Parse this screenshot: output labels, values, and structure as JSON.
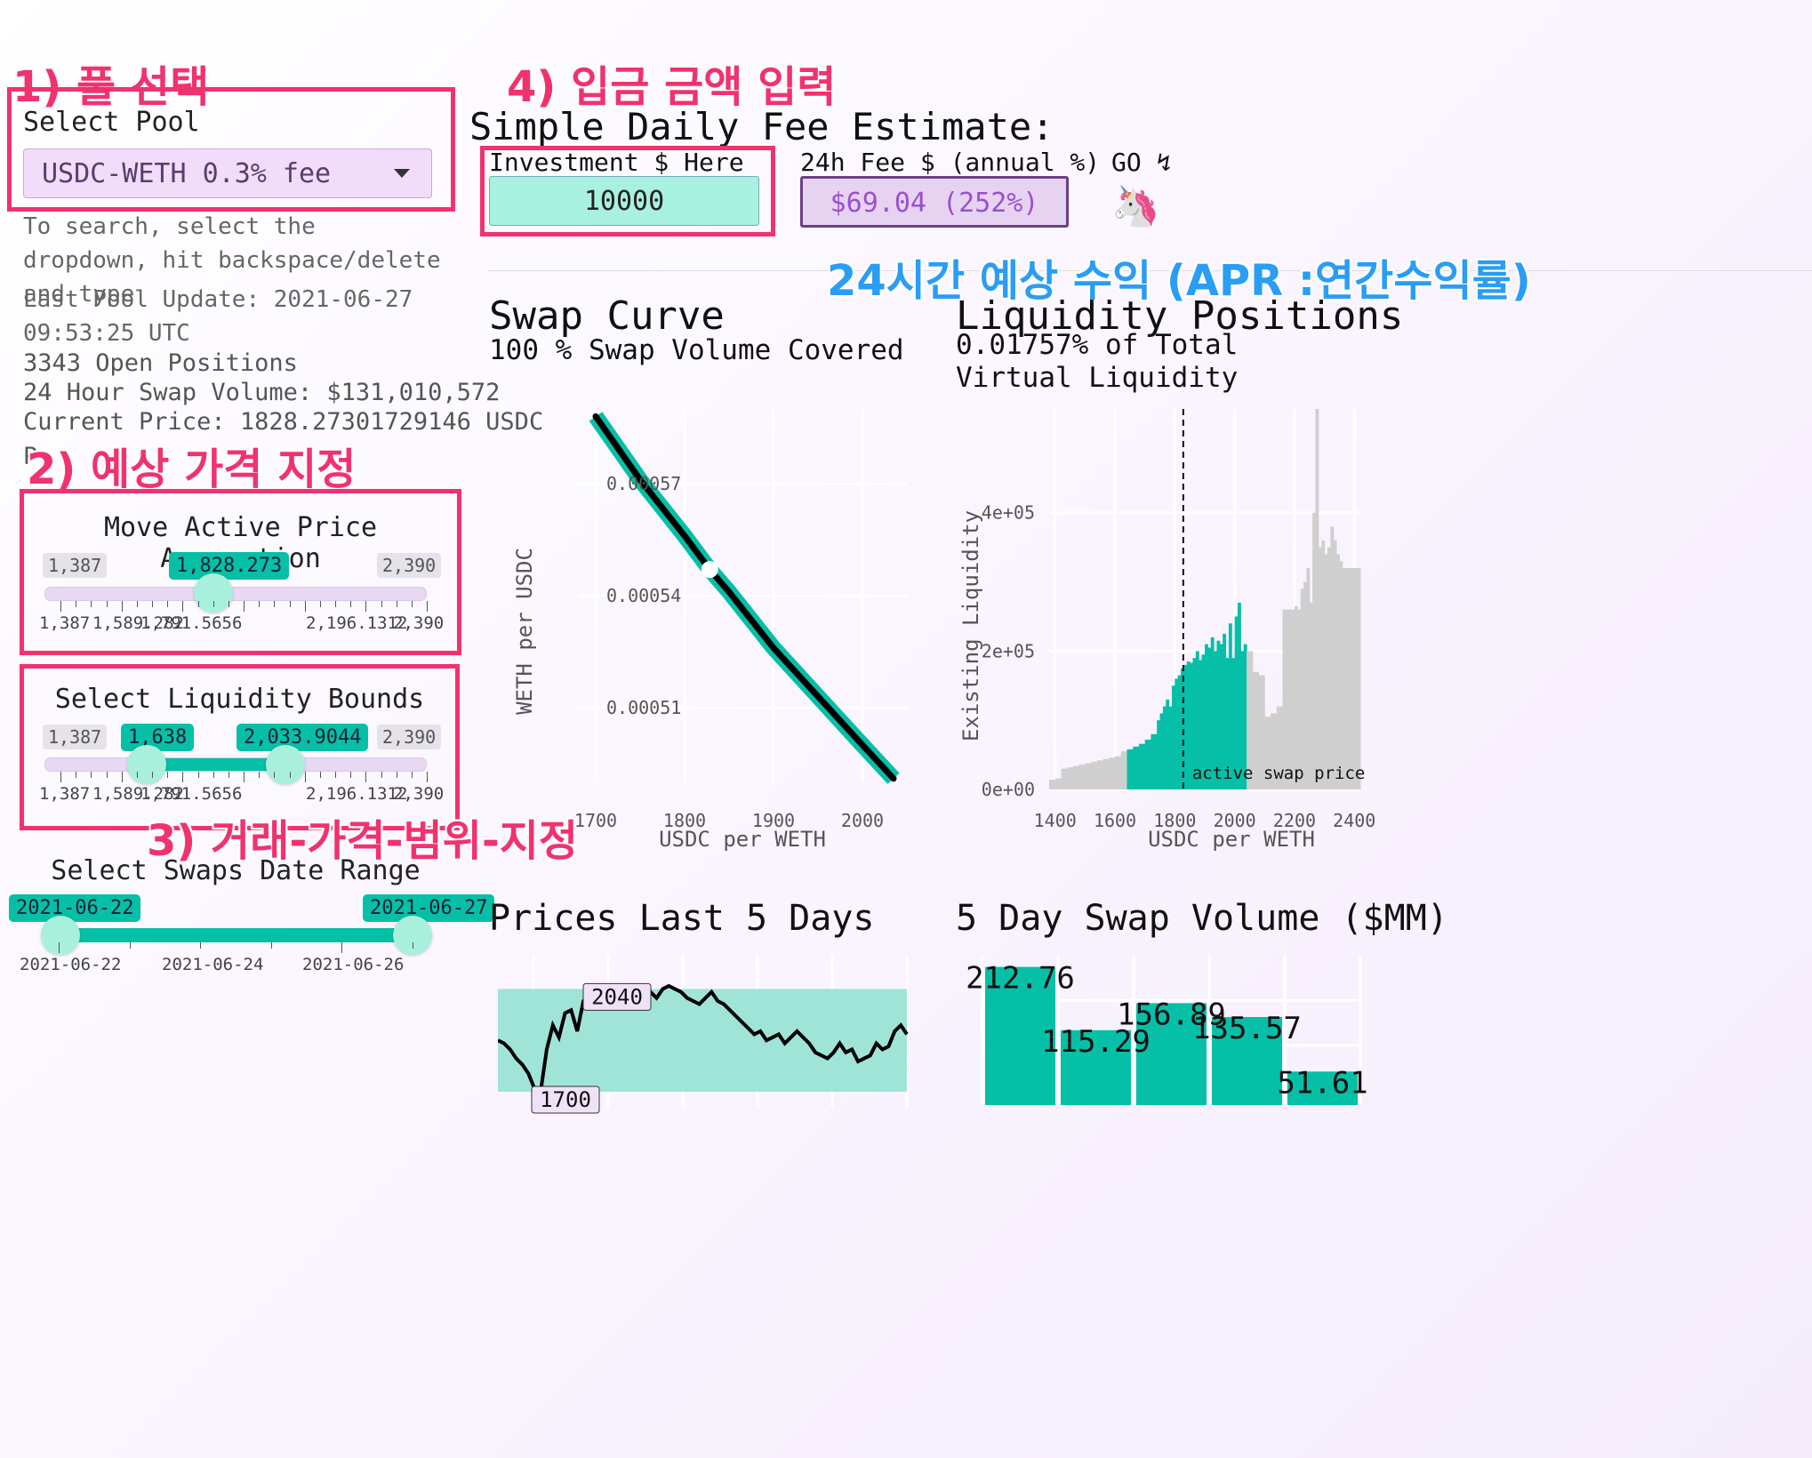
{
  "annotations": {
    "step1": "1) 풀 선택",
    "step2": "2) 예상 가격 지정",
    "step3": "3) 거래-가격-범위-지정",
    "step4": "4) 입금 금액 입력",
    "apr": "24시간 예상 수익 (APR :연간수익률)"
  },
  "sidebar": {
    "select_pool_label": "Select Pool",
    "pool_value": "USDC-WETH 0.3% fee",
    "pool_hint": "To search, select the dropdown, hit backspace/delete and type",
    "last_update": "Last Pool Update: 2021-06-27 09:53:25 UTC",
    "open_positions": "3343 Open Positions",
    "swap_volume": "24 Hour Swap Volume: $131,010,572",
    "current_price": "Current Price: 1828.27301729146 USDC",
    "cut_text": "P"
  },
  "price_slider": {
    "title": "Move Active Price Assumption",
    "min": "1,387",
    "max": "2,390",
    "value": "1,828.273",
    "value_num": 1828.273,
    "ticks": [
      "1,387",
      "1,589.282",
      "1,791.5656",
      "2,196.1312",
      "2,390"
    ]
  },
  "bounds_slider": {
    "title": "Select Liquidity Bounds",
    "min": "1,387",
    "max": "2,390",
    "low": "1,638",
    "high": "2,033.9044",
    "low_num": 1638,
    "high_num": 2033.9044,
    "ticks": [
      "1,387",
      "1,589.282",
      "1,791.5656",
      "2,196.1312",
      "2,390"
    ]
  },
  "date_slider": {
    "title": "Select Swaps Date Range",
    "start": "2021-06-22",
    "end": "2021-06-27",
    "ticks": [
      "2021-06-22",
      "2021-06-24",
      "2021-06-26"
    ]
  },
  "header": {
    "title": "Simple Daily Fee Estimate:",
    "investment_label": "Investment $ Here",
    "investment_value": "10000",
    "fee_label": "24h Fee $ (annual %)",
    "fee_value": "$69.04 (252%)",
    "go_label": "GO ↯",
    "unicorn": "🦄"
  },
  "swap_curve": {
    "title": "Swap Curve",
    "subtitle": "100 % Swap Volume Covered"
  },
  "liquidity": {
    "title": "Liquidity Positions",
    "subtitle": "0.01757% of Total Virtual Liquidity",
    "annotation": "active swap price"
  },
  "prices": {
    "title": "Prices Last 5 Days",
    "high_label": "2040",
    "low_label": "1700"
  },
  "volume": {
    "title": "5 Day Swap Volume ($MM)"
  },
  "colors": {
    "teal": "#06bfa7",
    "pink": "#f0326f",
    "blue": "#2a9df4",
    "purple": "#9b4fd1"
  },
  "chart_data": [
    {
      "type": "line",
      "title": "Swap Curve",
      "xlabel": "USDC per WETH",
      "ylabel": "WETH per USDC",
      "xlim": [
        1680,
        2050
      ],
      "ylim": [
        0.00049,
        0.00059
      ],
      "xticks": [
        "1700",
        "1800",
        "1900",
        "2000"
      ],
      "yticks": [
        "0.00051",
        "0.00054",
        "0.00057"
      ],
      "series": [
        {
          "x": [
            1700,
            1750,
            1800,
            1828.27,
            1850,
            1900,
            1950,
            2000,
            2035
          ],
          "y": [
            0.000588,
            0.000571,
            0.000556,
            0.000547,
            0.000541,
            0.000526,
            0.000513,
            0.0005,
            0.000491
          ]
        }
      ],
      "marker": {
        "x": 1828.27,
        "y": 0.000547
      }
    },
    {
      "type": "bar",
      "title": "Liquidity Positions",
      "xlabel": "USDC per WETH",
      "ylabel": "Existing Liquidity",
      "xlim": [
        1380,
        2420
      ],
      "ylim": [
        0,
        550000
      ],
      "xticks": [
        "1400",
        "1600",
        "1800",
        "2000",
        "2200",
        "2400"
      ],
      "yticks": [
        "0e+00",
        "2e+05",
        "4e+05"
      ],
      "active_price": 1828.27,
      "bounds": [
        1638,
        2033.9
      ],
      "x": [
        1380,
        1400,
        1420,
        1440,
        1460,
        1480,
        1500,
        1520,
        1540,
        1560,
        1580,
        1600,
        1620,
        1640,
        1660,
        1680,
        1700,
        1720,
        1740,
        1750,
        1760,
        1770,
        1780,
        1790,
        1800,
        1810,
        1820,
        1830,
        1840,
        1850,
        1860,
        1870,
        1880,
        1890,
        1900,
        1910,
        1920,
        1930,
        1940,
        1950,
        1960,
        1970,
        1980,
        1990,
        2000,
        2010,
        2020,
        2030,
        2040,
        2060,
        2080,
        2100,
        2120,
        2140,
        2160,
        2180,
        2200,
        2210,
        2220,
        2230,
        2240,
        2250,
        2260,
        2270,
        2280,
        2290,
        2300,
        2310,
        2320,
        2330,
        2340,
        2350,
        2360,
        2380,
        2400
      ],
      "values": [
        14000,
        16000,
        30000,
        32000,
        34000,
        36000,
        38000,
        40000,
        42000,
        44000,
        46000,
        48000,
        55000,
        58000,
        62000,
        66000,
        72000,
        80000,
        100000,
        110000,
        120000,
        130000,
        120000,
        150000,
        160000,
        165000,
        175000,
        180000,
        185000,
        183000,
        190000,
        200000,
        187000,
        195000,
        210000,
        205000,
        220000,
        200000,
        215000,
        210000,
        225000,
        190000,
        240000,
        190000,
        250000,
        270000,
        200000,
        210000,
        200000,
        170000,
        165000,
        105000,
        110000,
        120000,
        260000,
        260000,
        265000,
        260000,
        290000,
        300000,
        320000,
        270000,
        400000,
        550000,
        350000,
        360000,
        340000,
        350000,
        380000,
        360000,
        340000,
        330000,
        320000,
        320000,
        320000
      ]
    },
    {
      "type": "line",
      "title": "Prices Last 5 Days",
      "band": [
        1700,
        2040
      ],
      "series": [
        {
          "values": [
            1870,
            1860,
            1840,
            1810,
            1790,
            1760,
            1710,
            1700,
            1840,
            1920,
            1880,
            1960,
            1970,
            1900,
            2000,
            2010,
            1990,
            2030,
            2040,
            2030,
            2010,
            1990,
            1980,
            2000,
            2020,
            2030,
            2010,
            2040,
            2050,
            2040,
            2030,
            2010,
            2000,
            1990,
            2010,
            2030,
            2000,
            1990,
            1970,
            1950,
            1930,
            1910,
            1890,
            1900,
            1870,
            1880,
            1890,
            1860,
            1880,
            1900,
            1880,
            1860,
            1830,
            1820,
            1810,
            1830,
            1860,
            1830,
            1840,
            1800,
            1810,
            1820,
            1860,
            1840,
            1850,
            1900,
            1920,
            1890
          ]
        }
      ]
    },
    {
      "type": "bar",
      "title": "5 Day Swap Volume ($MM)",
      "values": [
        212.76,
        115.29,
        156.89,
        135.57,
        51.61
      ],
      "labels": [
        "212.76",
        "115.29",
        "156.89",
        "135.57",
        "51.61"
      ]
    }
  ]
}
